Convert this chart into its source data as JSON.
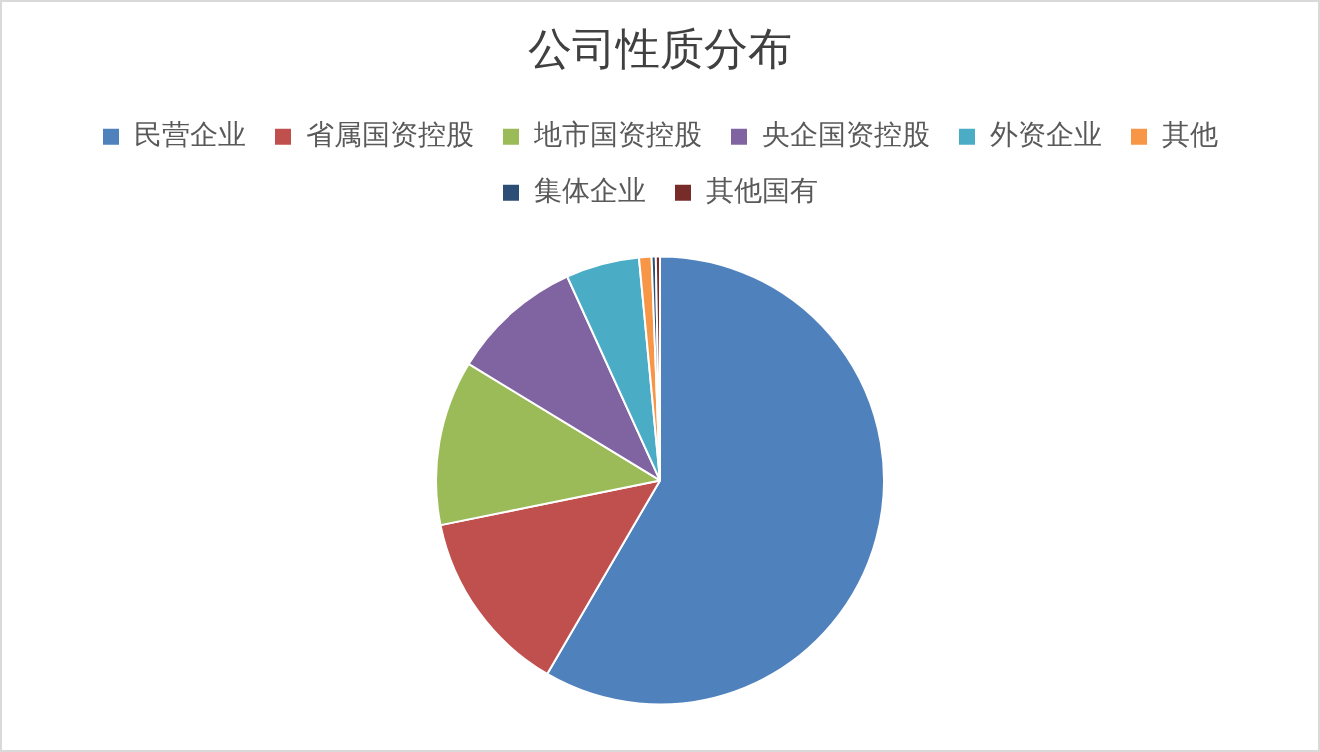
{
  "chart_data": {
    "type": "pie",
    "title": "公司性质分布",
    "categories": [
      "民营企业",
      "省属国资控股",
      "地市国资控股",
      "央企国资控股",
      "外资企业",
      "其他",
      "集体企业",
      "其他国有"
    ],
    "values": [
      58.4,
      13.4,
      11.9,
      9.5,
      5.3,
      0.9,
      0.3,
      0.3
    ],
    "colors": [
      "#4f81bd",
      "#c0504d",
      "#9bbb59",
      "#8064a2",
      "#4bacc6",
      "#f79646",
      "#2c4d75",
      "#772c2a"
    ],
    "legend": "top"
  }
}
